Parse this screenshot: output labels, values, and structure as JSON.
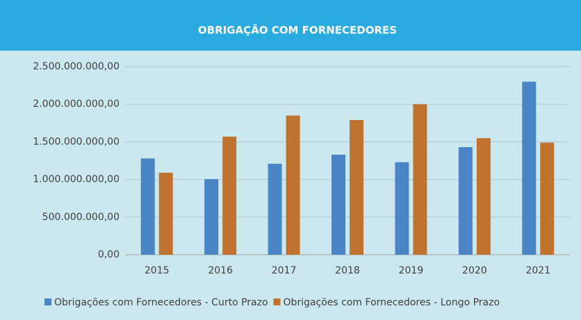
{
  "chart_data": {
    "type": "bar",
    "title": "OBRIGAÇÃO COM FORNECEDORES",
    "categories": [
      "2015",
      "2016",
      "2017",
      "2018",
      "2019",
      "2020",
      "2021"
    ],
    "series": [
      {
        "name": "Obrigações com Fornecedores - Curto Prazo",
        "color": "#4a86c5",
        "values": [
          1280000000,
          1005000000,
          1210000000,
          1330000000,
          1230000000,
          1430000000,
          2300000000
        ]
      },
      {
        "name": "Obrigações com Fornecedores - Longo Prazo",
        "color": "#c0732f",
        "values": [
          1090000000,
          1570000000,
          1850000000,
          1790000000,
          2000000000,
          1550000000,
          1490000000
        ]
      }
    ],
    "ylim": [
      0,
      2500000000
    ],
    "yticks": [
      {
        "value": 0,
        "label": "0,00"
      },
      {
        "value": 500000000,
        "label": "500.000.000,00"
      },
      {
        "value": 1000000000,
        "label": "1.000.000.000,00"
      },
      {
        "value": 1500000000,
        "label": "1.500.000.000,00"
      },
      {
        "value": 2000000000,
        "label": "2.000.000.000,00"
      },
      {
        "value": 2500000000,
        "label": "2.500.000.000,00"
      }
    ],
    "grid": true,
    "legend": "bottom"
  }
}
